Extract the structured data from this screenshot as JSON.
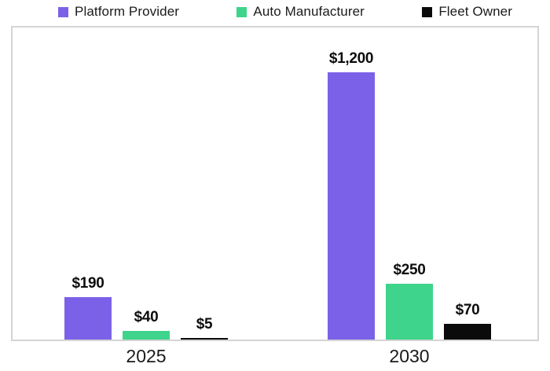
{
  "legend": {
    "items": [
      {
        "label": "Platform Provider",
        "color": "#7b61e8"
      },
      {
        "label": "Auto Manufacturer",
        "color": "#3ed48c"
      },
      {
        "label": "Fleet Owner",
        "color": "#0b0b0b"
      }
    ]
  },
  "chart_data": {
    "type": "bar",
    "categories": [
      "2025",
      "2030"
    ],
    "series": [
      {
        "name": "Platform Provider",
        "color": "#7b61e8",
        "values": [
          190,
          1200
        ],
        "labels": [
          "$190",
          "$1,200"
        ]
      },
      {
        "name": "Auto Manufacturer",
        "color": "#3ed48c",
        "values": [
          40,
          250
        ],
        "labels": [
          "$40",
          "$250"
        ]
      },
      {
        "name": "Fleet Owner",
        "color": "#0b0b0b",
        "values": [
          5,
          70
        ],
        "labels": [
          "$5",
          "$70"
        ]
      }
    ],
    "value_prefix": "$",
    "ylim": [
      0,
      1400
    ],
    "grid": false,
    "y_axis_visible": false,
    "legend_position": "top"
  }
}
